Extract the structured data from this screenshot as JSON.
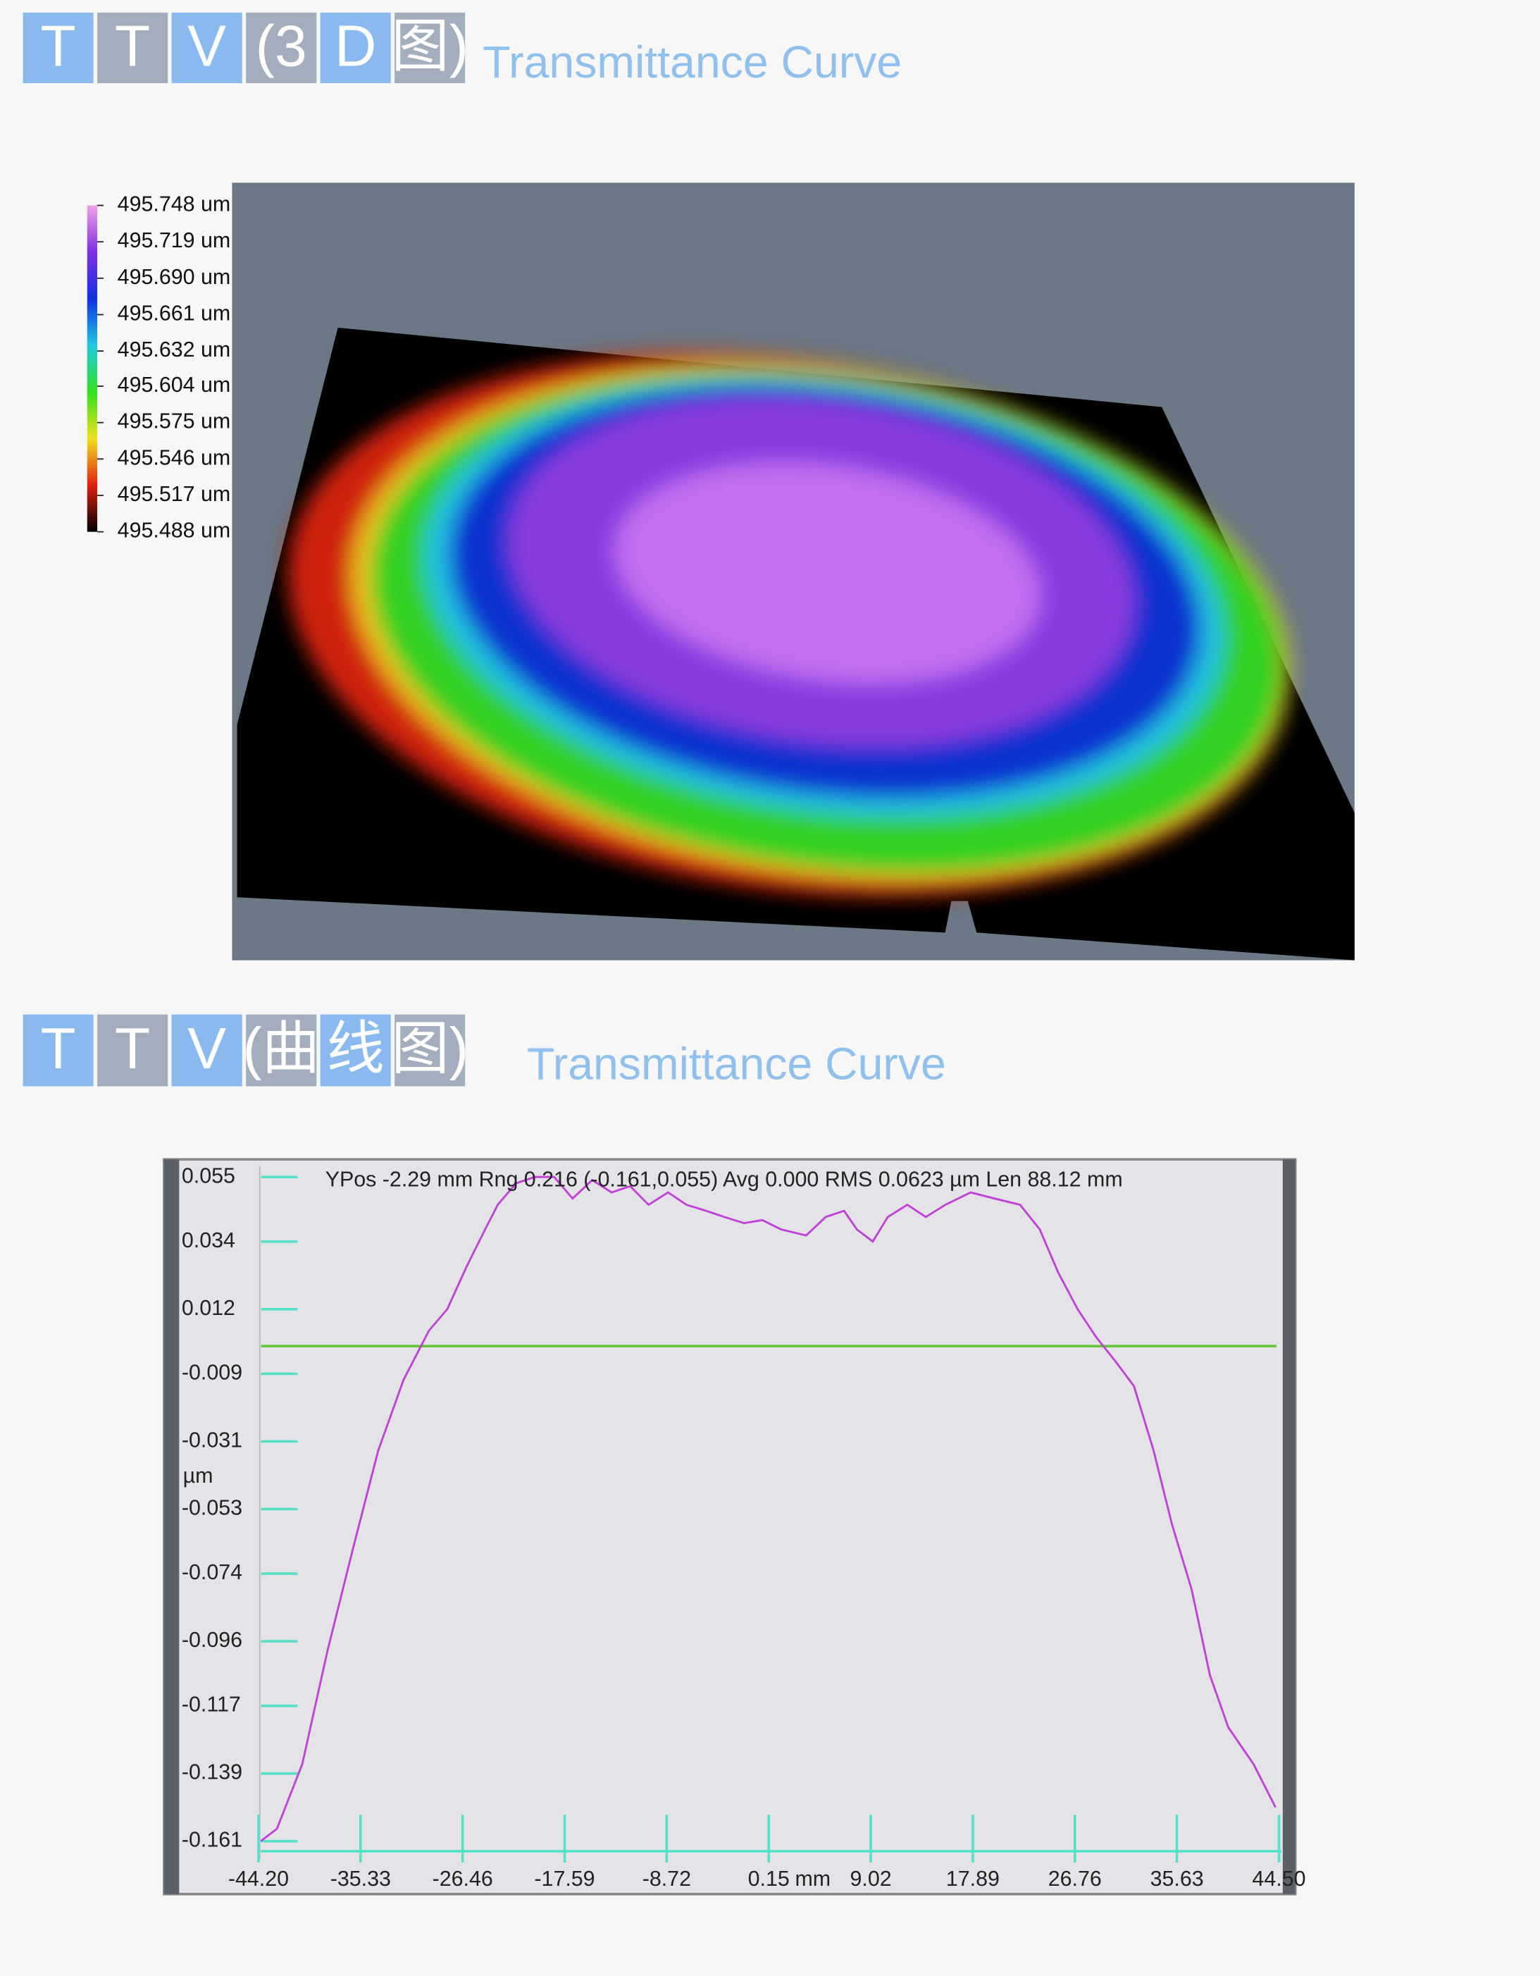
{
  "headers": [
    {
      "boxes": [
        "T",
        "T",
        "V",
        "(3",
        "D",
        "图)"
      ],
      "subtitle": "Transmittance Curve"
    },
    {
      "boxes": [
        "T",
        "T",
        "V",
        "(曲",
        "线",
        "图)"
      ],
      "subtitle": "Transmittance Curve"
    }
  ],
  "chart_data": [
    {
      "type": "surface3d",
      "zlim": [
        495.488,
        495.748
      ],
      "colormap": [
        "#000000",
        "#e02010",
        "#f0e020",
        "#30e020",
        "#20c8e0",
        "#1030e0",
        "#8030e0",
        "#f0a0e8"
      ],
      "zticks": [
        {
          "value": 495.748,
          "label": "495.748 um"
        },
        {
          "value": 495.719,
          "label": "495.719 um"
        },
        {
          "value": 495.69,
          "label": "495.690 um"
        },
        {
          "value": 495.661,
          "label": "495.661 um"
        },
        {
          "value": 495.632,
          "label": "495.632 um"
        },
        {
          "value": 495.604,
          "label": "495.604 um"
        },
        {
          "value": 495.575,
          "label": "495.575 um"
        },
        {
          "value": 495.546,
          "label": "495.546 um"
        },
        {
          "value": 495.517,
          "label": "495.517 um"
        },
        {
          "value": 495.488,
          "label": "495.488 um"
        }
      ]
    },
    {
      "type": "line",
      "annotation": "YPos -2.29 mm Rng 0.216 (-0.161,0.055) Avg 0.000 RMS 0.0623 µm Len 88.12 mm",
      "ylabel": "µm",
      "xlabel": "mm",
      "xlim": [
        -44.2,
        44.5
      ],
      "ylim": [
        -0.161,
        0.055
      ],
      "xticks": [
        {
          "value": -44.2,
          "label": "-44.20"
        },
        -35.33,
        -26.46,
        -17.59,
        -8.72,
        0.15,
        9.02,
        17.89,
        26.76,
        35.63,
        {
          "value": 44.5,
          "label": "44.50"
        }
      ],
      "yticks": [
        0.055,
        0.034,
        0.012,
        -0.009,
        -0.031,
        -0.053,
        -0.074,
        -0.096,
        -0.117,
        -0.139,
        -0.161
      ],
      "hline": 0,
      "hline_color": "#66c43a",
      "axis_color": "#55e0c8",
      "series": [
        {
          "color": "#c040d8",
          "x": [
            -44.0,
            -42.6,
            -40.4,
            -38.2,
            -36.0,
            -33.8,
            -31.6,
            -29.4,
            -27.8,
            -26.1,
            -24.5,
            -23.4,
            -21.8,
            -20.2,
            -18.5,
            -16.9,
            -15.2,
            -13.5,
            -11.9,
            -10.3,
            -8.6,
            -7.0,
            -5.3,
            -3.7,
            -2.0,
            -0.4,
            1.2,
            3.4,
            5.1,
            6.7,
            7.8,
            9.2,
            10.5,
            12.2,
            13.8,
            15.5,
            17.7,
            19.8,
            22.0,
            23.7,
            25.3,
            27.0,
            28.6,
            30.3,
            31.9,
            33.6,
            35.2,
            36.9,
            38.5,
            40.1,
            42.3,
            44.2
          ],
          "values": [
            -0.161,
            -0.157,
            -0.136,
            -0.099,
            -0.066,
            -0.034,
            -0.011,
            0.005,
            0.012,
            0.026,
            0.038,
            0.046,
            0.053,
            0.055,
            0.055,
            0.048,
            0.054,
            0.05,
            0.052,
            0.046,
            0.05,
            0.046,
            0.044,
            0.042,
            0.04,
            0.041,
            0.038,
            0.036,
            0.042,
            0.044,
            0.038,
            0.034,
            0.042,
            0.046,
            0.042,
            0.046,
            0.05,
            0.048,
            0.046,
            0.038,
            0.024,
            0.012,
            0.003,
            -0.005,
            -0.013,
            -0.034,
            -0.058,
            -0.079,
            -0.107,
            -0.124,
            -0.136,
            -0.15
          ]
        }
      ]
    }
  ]
}
